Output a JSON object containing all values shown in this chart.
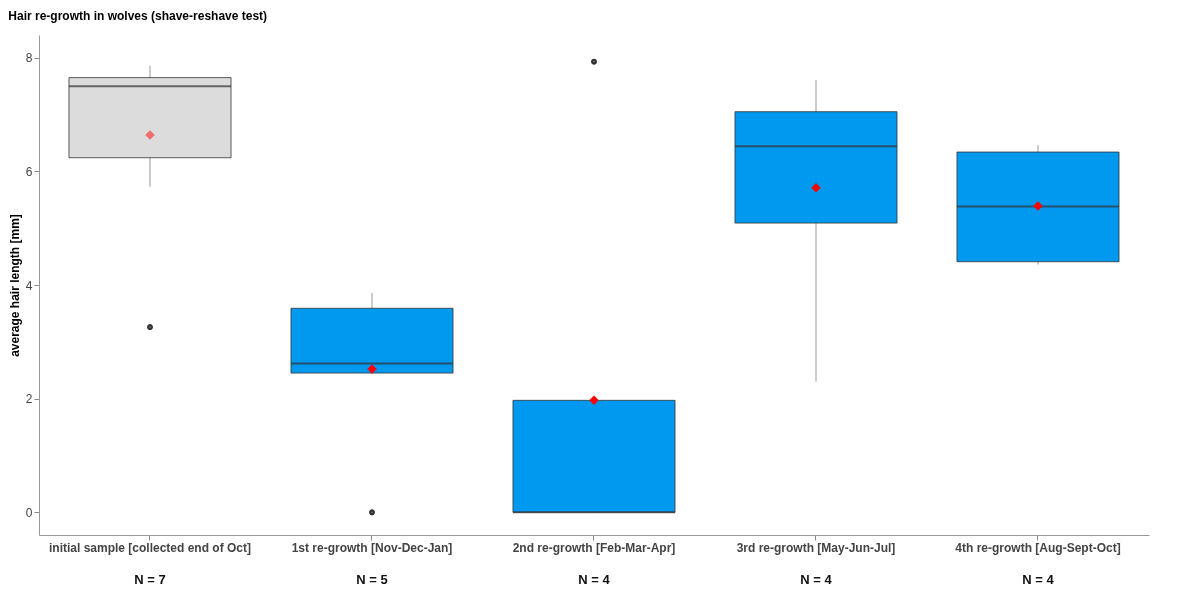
{
  "chart_data": {
    "type": "box",
    "title": "Hair re-growth in wolves (shave-reshave test)",
    "ylabel": "average hair length [mm]",
    "categories": [
      "initial sample [collected end of Oct]",
      "1st re-growth [Nov-Dec-Jan]",
      "2nd re-growth [Feb-Mar-Apr]",
      "3rd re-growth [May-Jun-Jul]",
      "4th re-growth [Aug-Sept-Oct]"
    ],
    "boxes": [
      {
        "low": 5.73,
        "q1": 6.24,
        "median": 7.5,
        "q3": 7.65,
        "high": 7.86,
        "mean": 6.64,
        "outliers": [
          3.26
        ]
      },
      {
        "low": 2.45,
        "q1": 2.45,
        "median": 2.62,
        "q3": 3.59,
        "high": 3.86,
        "mean": 2.52,
        "outliers": [
          0
        ]
      },
      {
        "low": 0,
        "q1": 0,
        "median": 0,
        "q3": 1.97,
        "high": 1.97,
        "mean": 1.97,
        "outliers": [
          7.93
        ]
      },
      {
        "low": 2.3,
        "q1": 5.09,
        "median": 6.44,
        "q3": 7.05,
        "high": 7.61,
        "mean": 5.71
      },
      {
        "low": 4.36,
        "q1": 4.41,
        "median": 5.38,
        "q3": 6.34,
        "high": 6.46,
        "mean": 5.39
      }
    ],
    "colors": [
      "#dcdcdc",
      "#0099f0",
      "#0099f0",
      "#0099f0",
      "#0099f0"
    ],
    "ylim": [
      -0.4,
      8.4
    ],
    "yticks": [
      0,
      2,
      4,
      6,
      8
    ],
    "grid": false,
    "annotations": [
      "N = 7",
      "N = 5",
      "N = 4",
      "N = 4",
      "N = 4"
    ]
  }
}
